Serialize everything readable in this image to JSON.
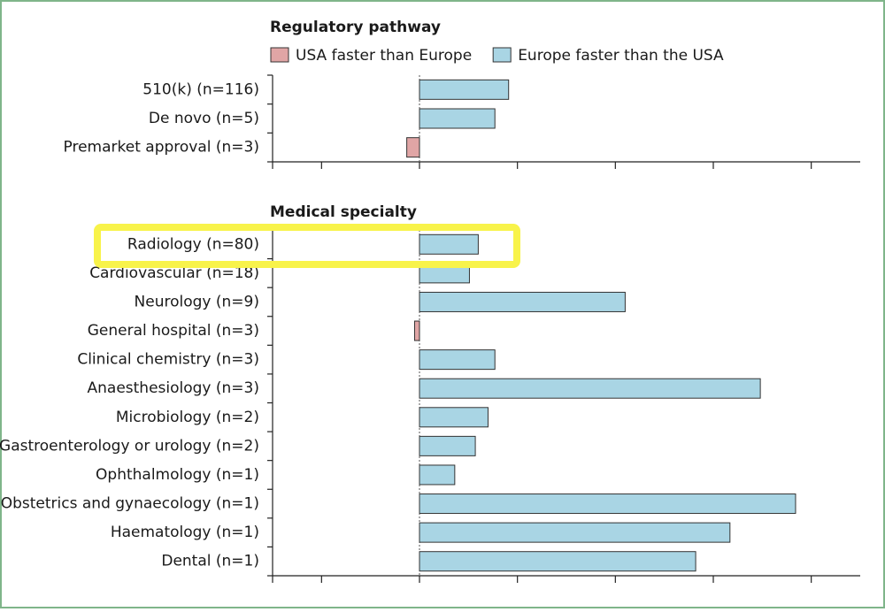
{
  "chart_data": [
    {
      "type": "bar",
      "orientation": "horizontal",
      "title": "Regulatory pathway",
      "legend": [
        {
          "name": "USA faster than Europe",
          "color": "#e0a5a5"
        },
        {
          "name": "Europe faster than the USA",
          "color": "#a9d5e4"
        }
      ],
      "categories": [
        "510(k) (n=116)",
        "De novo (n=5)",
        "Premarket approval (n=3)"
      ],
      "values": [
        0.91,
        0.77,
        -0.13
      ],
      "xlim": [
        -1.5,
        4.5
      ],
      "xticks": [
        -1.5,
        -1,
        0,
        1,
        2,
        3,
        4
      ]
    },
    {
      "type": "bar",
      "orientation": "horizontal",
      "title": "Medical specialty",
      "categories": [
        "Radiology (n=80)",
        "Cardiovascular (n=18)",
        "Neurology (n=9)",
        "General hospital (n=3)",
        "Clinical chemistry (n=3)",
        "Anaesthesiology (n=3)",
        "Microbiology (n=2)",
        "Gastroenterology or urology (n=2)",
        "Ophthalmology (n=1)",
        "Obstetrics and gynaecology (n=1)",
        "Haematology (n=1)",
        "Dental (n=1)"
      ],
      "values": [
        0.6,
        0.51,
        2.1,
        -0.05,
        0.77,
        3.48,
        0.7,
        0.57,
        0.36,
        3.84,
        3.17,
        2.82
      ],
      "xlim": [
        -1.5,
        4.5
      ],
      "xticks": [
        -1.5,
        -1,
        0,
        1,
        2,
        3,
        4
      ]
    }
  ]
}
